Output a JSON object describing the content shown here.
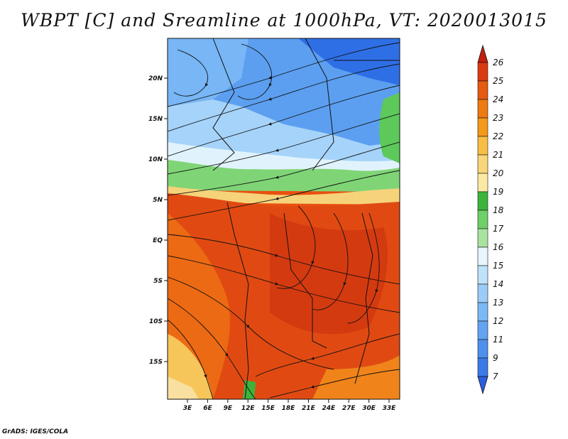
{
  "title": "WBPT [C] and Sreamline at 1000hPa, VT: 2020013015",
  "credit": "GrADS: IGES/COLA",
  "map": {
    "lat_labels": [
      "20N",
      "15N",
      "10N",
      "5N",
      "EQ",
      "5S",
      "10S",
      "15S"
    ],
    "lon_labels": [
      "3E",
      "6E",
      "9E",
      "12E",
      "15E",
      "18E",
      "21E",
      "24E",
      "27E",
      "30E",
      "33E"
    ],
    "colorbar": {
      "levels": [
        "7",
        "9",
        "11",
        "12",
        "13",
        "14",
        "15",
        "16",
        "17",
        "18",
        "19",
        "20",
        "21",
        "22",
        "23",
        "24",
        "25",
        "26"
      ],
      "colors": [
        "#2b5fe0",
        "#3c7ae8",
        "#4f90ee",
        "#62a4f2",
        "#7bb8f6",
        "#9bccf8",
        "#bfe2fb",
        "#e6f6fc",
        "#a8e3a0",
        "#6fcf68",
        "#3cb43c",
        "#fbe9a3",
        "#f9d67a",
        "#f7be45",
        "#f39a1a",
        "#ee7a12",
        "#e65a12",
        "#da3a10",
        "#c21e0e"
      ]
    }
  }
}
